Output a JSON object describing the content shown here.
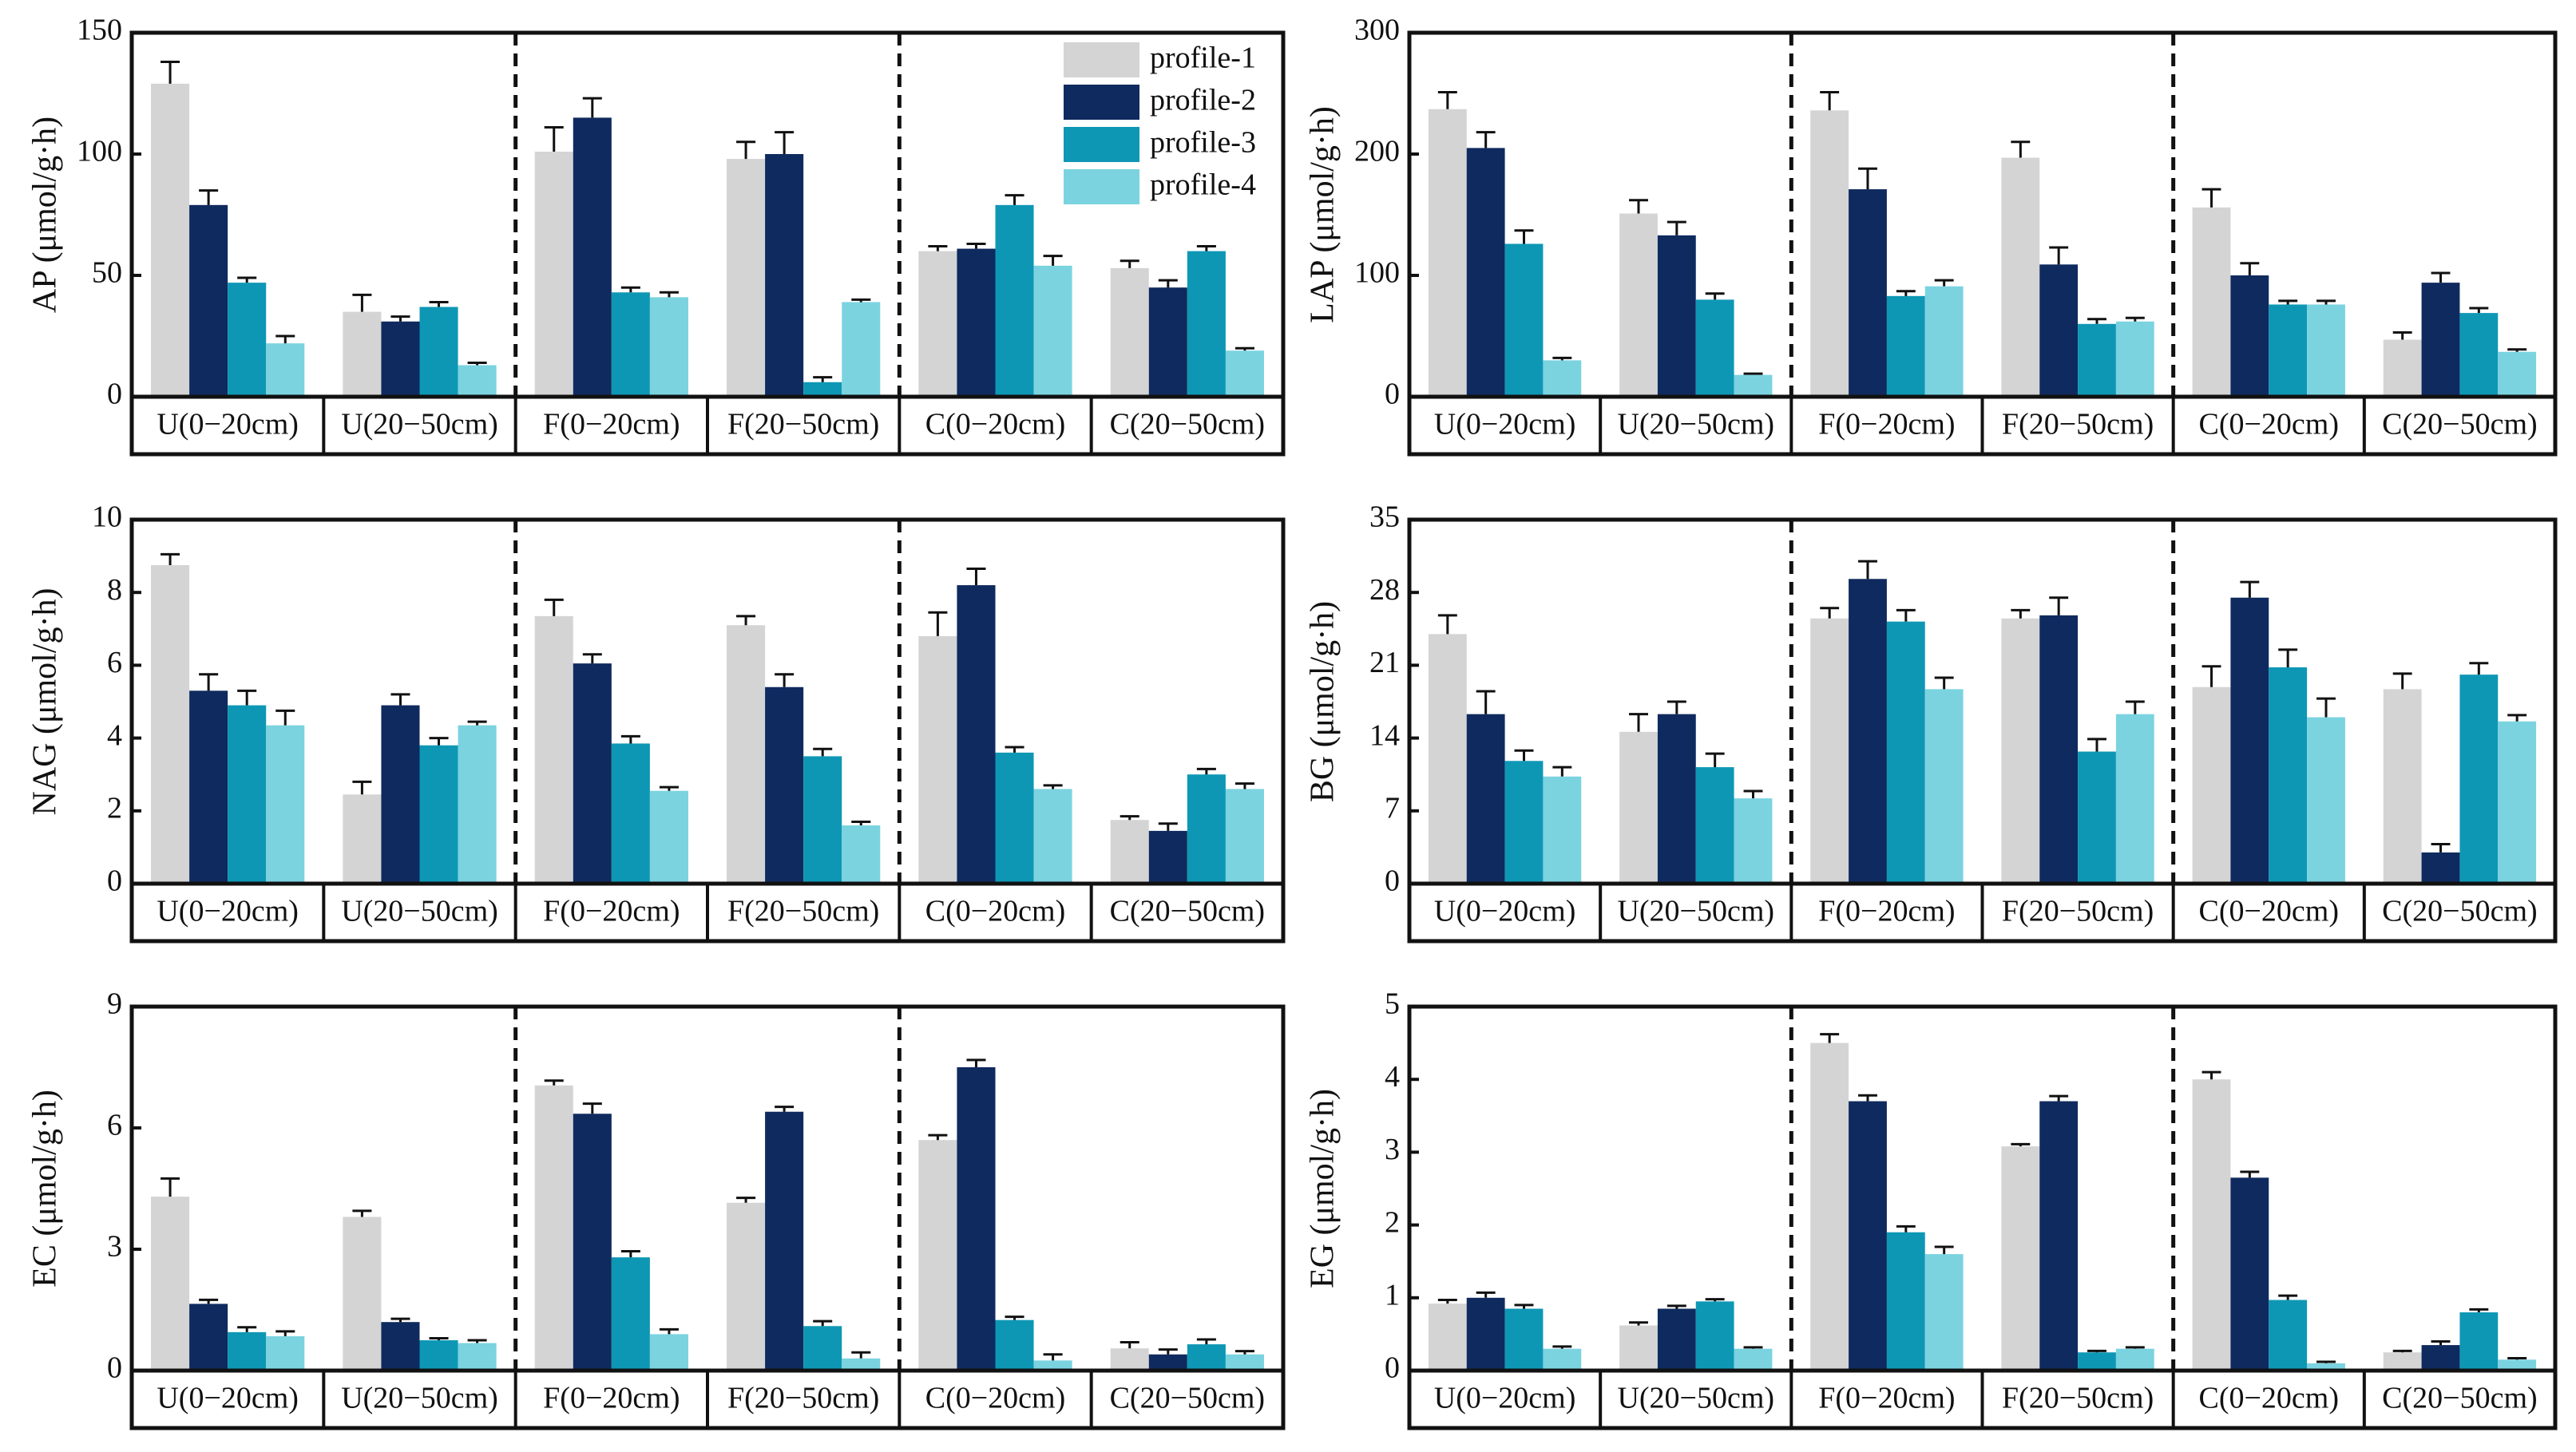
{
  "chart_data": [
    {
      "type": "bar",
      "ylabel": "AP (μmol/g·h)",
      "ylim": [
        0,
        150
      ],
      "yticks": [
        0,
        50,
        100,
        150
      ],
      "legend": "upper right",
      "categories": [
        "U(0−20cm)",
        "U(20−50cm)",
        "F(0−20cm)",
        "F(20−50cm)",
        "C(0−20cm)",
        "C(20−50cm)"
      ],
      "series": [
        {
          "name": "profile-1",
          "color": "#d4d4d4",
          "values": [
            129,
            35,
            101,
            98,
            60,
            53
          ],
          "errors": [
            9,
            7,
            10,
            7,
            2,
            3
          ]
        },
        {
          "name": "profile-2",
          "color": "#0f2a5e",
          "values": [
            79,
            31,
            115,
            100,
            61,
            45
          ],
          "errors": [
            6,
            2,
            8,
            9,
            2,
            3
          ]
        },
        {
          "name": "profile-3",
          "color": "#0e97b5",
          "values": [
            47,
            37,
            43,
            6,
            79,
            60
          ],
          "errors": [
            2,
            2,
            2,
            2,
            4,
            2
          ]
        },
        {
          "name": "profile-4",
          "color": "#7bd3e0",
          "values": [
            22,
            13,
            41,
            39,
            54,
            19
          ],
          "errors": [
            3,
            1,
            2,
            1,
            4,
            1
          ]
        }
      ]
    },
    {
      "type": "bar",
      "ylabel": "LAP (μmol/g·h)",
      "ylim": [
        0,
        300
      ],
      "yticks": [
        0,
        100,
        200,
        300
      ],
      "categories": [
        "U(0−20cm)",
        "U(20−50cm)",
        "F(0−20cm)",
        "F(20−50cm)",
        "C(0−20cm)",
        "C(20−50cm)"
      ],
      "series": [
        {
          "color": "#d4d4d4",
          "values": [
            237,
            151,
            236,
            197,
            156,
            47
          ],
          "errors": [
            14,
            11,
            15,
            13,
            15,
            6
          ]
        },
        {
          "color": "#0f2a5e",
          "values": [
            205,
            133,
            171,
            109,
            100,
            94
          ],
          "errors": [
            13,
            11,
            17,
            14,
            10,
            8
          ]
        },
        {
          "color": "#0e97b5",
          "values": [
            126,
            80,
            83,
            60,
            76,
            69
          ],
          "errors": [
            11,
            5,
            4,
            4,
            3,
            4
          ]
        },
        {
          "color": "#7bd3e0",
          "values": [
            30,
            18,
            91,
            62,
            76,
            37
          ],
          "errors": [
            2,
            1,
            5,
            3,
            3,
            2
          ]
        }
      ]
    },
    {
      "type": "bar",
      "ylabel": "NAG (μmol/g·h)",
      "ylim": [
        0,
        10
      ],
      "yticks": [
        0,
        2,
        4,
        6,
        8,
        10
      ],
      "categories": [
        "U(0−20cm)",
        "U(20−50cm)",
        "F(0−20cm)",
        "F(20−50cm)",
        "C(0−20cm)",
        "C(20−50cm)"
      ],
      "series": [
        {
          "color": "#d4d4d4",
          "values": [
            8.75,
            2.45,
            7.35,
            7.1,
            6.8,
            1.75
          ],
          "errors": [
            0.3,
            0.35,
            0.45,
            0.25,
            0.65,
            0.1
          ]
        },
        {
          "color": "#0f2a5e",
          "values": [
            5.3,
            4.9,
            6.05,
            5.4,
            8.2,
            1.45
          ],
          "errors": [
            0.45,
            0.3,
            0.25,
            0.35,
            0.45,
            0.2
          ]
        },
        {
          "color": "#0e97b5",
          "values": [
            4.9,
            3.8,
            3.85,
            3.5,
            3.6,
            3.0
          ],
          "errors": [
            0.4,
            0.2,
            0.2,
            0.2,
            0.15,
            0.15
          ]
        },
        {
          "color": "#7bd3e0",
          "values": [
            4.35,
            4.35,
            2.55,
            1.6,
            2.6,
            2.6
          ],
          "errors": [
            0.4,
            0.1,
            0.1,
            0.1,
            0.1,
            0.15
          ]
        }
      ]
    },
    {
      "type": "bar",
      "ylabel": "BG (μmol/g·h)",
      "ylim": [
        0,
        35
      ],
      "yticks": [
        0,
        7,
        14,
        21,
        28,
        35
      ],
      "categories": [
        "U(0−20cm)",
        "U(20−50cm)",
        "F(0−20cm)",
        "F(20−50cm)",
        "C(0−20cm)",
        "C(20−50cm)"
      ],
      "series": [
        {
          "color": "#d4d4d4",
          "values": [
            24,
            14.6,
            25.5,
            25.5,
            18.9,
            18.7
          ],
          "errors": [
            1.8,
            1.7,
            1,
            0.8,
            2,
            1.5
          ]
        },
        {
          "color": "#0f2a5e",
          "values": [
            16.3,
            16.3,
            29.3,
            25.8,
            27.5,
            3
          ],
          "errors": [
            2.2,
            1.2,
            1.7,
            1.7,
            1.5,
            0.8
          ]
        },
        {
          "color": "#0e97b5",
          "values": [
            11.8,
            11.2,
            25.2,
            12.7,
            20.8,
            20.1
          ],
          "errors": [
            1,
            1.3,
            1.1,
            1.2,
            1.7,
            1.1
          ]
        },
        {
          "color": "#7bd3e0",
          "values": [
            10.3,
            8.2,
            18.7,
            16.3,
            16,
            15.6
          ],
          "errors": [
            0.9,
            0.7,
            1.1,
            1.2,
            1.8,
            0.6
          ]
        }
      ]
    },
    {
      "type": "bar",
      "ylabel": "EC (μmol/g·h)",
      "ylim": [
        0,
        9
      ],
      "yticks": [
        0,
        3,
        6,
        9
      ],
      "categories": [
        "U(0−20cm)",
        "U(20−50cm)",
        "F(0−20cm)",
        "F(20−50cm)",
        "C(0−20cm)",
        "C(20−50cm)"
      ],
      "series": [
        {
          "color": "#d4d4d4",
          "values": [
            4.3,
            3.8,
            7.05,
            4.15,
            5.7,
            0.55
          ],
          "errors": [
            0.45,
            0.15,
            0.12,
            0.12,
            0.12,
            0.15
          ]
        },
        {
          "color": "#0f2a5e",
          "values": [
            1.65,
            1.2,
            6.35,
            6.4,
            7.5,
            0.4
          ],
          "errors": [
            0.1,
            0.08,
            0.25,
            0.12,
            0.18,
            0.12
          ]
        },
        {
          "color": "#0e97b5",
          "values": [
            0.95,
            0.75,
            2.8,
            1.1,
            1.25,
            0.65
          ],
          "errors": [
            0.12,
            0.05,
            0.15,
            0.12,
            0.08,
            0.12
          ]
        },
        {
          "color": "#7bd3e0",
          "values": [
            0.85,
            0.68,
            0.9,
            0.3,
            0.25,
            0.4
          ],
          "errors": [
            0.12,
            0.07,
            0.12,
            0.15,
            0.15,
            0.08
          ]
        }
      ]
    },
    {
      "type": "bar",
      "ylabel": "EG (μmol/g·h)",
      "ylim": [
        0,
        5
      ],
      "yticks": [
        0,
        1,
        2,
        3,
        4,
        5
      ],
      "categories": [
        "U(0−20cm)",
        "U(20−50cm)",
        "F(0−20cm)",
        "F(20−50cm)",
        "C(0−20cm)",
        "C(20−50cm)"
      ],
      "series": [
        {
          "color": "#d4d4d4",
          "values": [
            0.92,
            0.62,
            4.5,
            3.08,
            4.0,
            0.25
          ],
          "errors": [
            0.05,
            0.04,
            0.12,
            0.03,
            0.1,
            0.02
          ]
        },
        {
          "color": "#0f2a5e",
          "values": [
            1.0,
            0.85,
            3.7,
            3.7,
            2.65,
            0.35
          ],
          "errors": [
            0.07,
            0.04,
            0.08,
            0.07,
            0.08,
            0.05
          ]
        },
        {
          "color": "#0e97b5",
          "values": [
            0.85,
            0.95,
            1.9,
            0.25,
            0.97,
            0.8
          ],
          "errors": [
            0.05,
            0.03,
            0.08,
            0.02,
            0.06,
            0.04
          ]
        },
        {
          "color": "#7bd3e0",
          "values": [
            0.3,
            0.3,
            1.6,
            0.3,
            0.1,
            0.15
          ],
          "errors": [
            0.03,
            0.02,
            0.1,
            0.02,
            0.02,
            0.02
          ]
        }
      ]
    }
  ]
}
